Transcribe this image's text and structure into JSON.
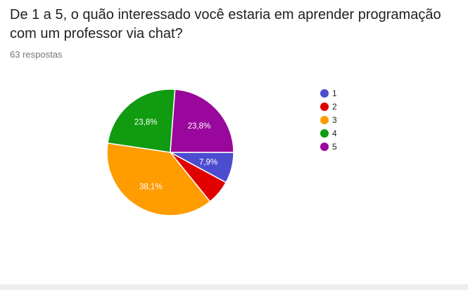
{
  "question": "De 1 a 5, o quão interessado você estaria em aprender programação com um professor via chat?",
  "responses_label": "63 respostas",
  "chart_data": {
    "type": "pie",
    "categories": [
      "1",
      "2",
      "3",
      "4",
      "5"
    ],
    "values": [
      7.9,
      6.3,
      38.1,
      23.8,
      23.8
    ],
    "labels": [
      "7,9%",
      "",
      "38,1%",
      "23,8%",
      "23,8%"
    ],
    "colors": [
      "#4c4ccf",
      "#e00000",
      "#ff9c00",
      "#109b10",
      "#9a079c"
    ],
    "legend_position": "right"
  }
}
